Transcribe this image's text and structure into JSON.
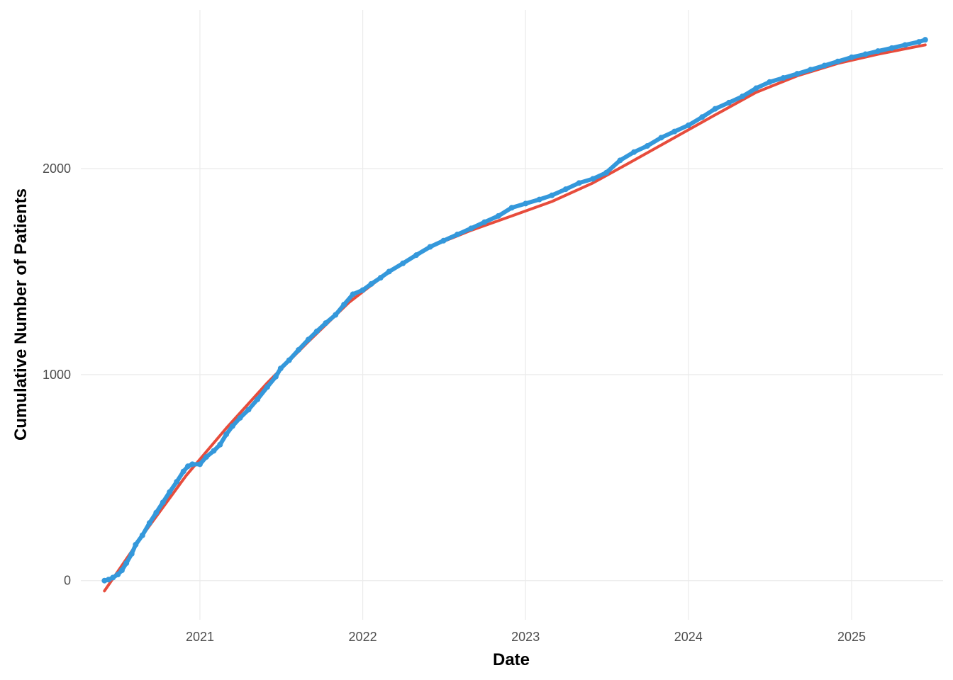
{
  "chart_data": {
    "type": "scatter",
    "title": "",
    "xlabel": "Date",
    "ylabel": "Cumulative Number of Patients",
    "x_type": "date",
    "xlim": [
      "2020-04-09",
      "2025-07-25"
    ],
    "ylim": [
      -190,
      2770
    ],
    "x_ticks": [
      {
        "value": "2021-01-01",
        "label": "2021"
      },
      {
        "value": "2022-01-01",
        "label": "2022"
      },
      {
        "value": "2023-01-01",
        "label": "2023"
      },
      {
        "value": "2024-01-01",
        "label": "2024"
      },
      {
        "value": "2025-01-01",
        "label": "2025"
      }
    ],
    "y_ticks": [
      {
        "value": 0,
        "label": "0"
      },
      {
        "value": 1000,
        "label": "1000"
      },
      {
        "value": 2000,
        "label": "2000"
      }
    ],
    "grid": true,
    "legend": "none",
    "series": [
      {
        "kind": "points",
        "color": "#3498db",
        "points": [
          [
            "2020-06-01",
            0
          ],
          [
            "2020-06-10",
            5
          ],
          [
            "2020-06-20",
            15
          ],
          [
            "2020-07-01",
            30
          ],
          [
            "2020-07-10",
            50
          ],
          [
            "2020-07-20",
            85
          ],
          [
            "2020-08-01",
            130
          ],
          [
            "2020-08-10",
            175
          ],
          [
            "2020-08-25",
            220
          ],
          [
            "2020-09-10",
            280
          ],
          [
            "2020-09-25",
            330
          ],
          [
            "2020-10-10",
            380
          ],
          [
            "2020-10-25",
            430
          ],
          [
            "2020-11-10",
            480
          ],
          [
            "2020-11-25",
            530
          ],
          [
            "2020-12-05",
            555
          ],
          [
            "2020-12-15",
            565
          ],
          [
            "2021-01-01",
            565
          ],
          [
            "2021-01-15",
            600
          ],
          [
            "2021-02-01",
            630
          ],
          [
            "2021-02-15",
            660
          ],
          [
            "2021-03-01",
            710
          ],
          [
            "2021-03-15",
            750
          ],
          [
            "2021-04-01",
            790
          ],
          [
            "2021-04-20",
            830
          ],
          [
            "2021-05-10",
            880
          ],
          [
            "2021-06-01",
            940
          ],
          [
            "2021-06-20",
            990
          ],
          [
            "2021-07-01",
            1030
          ],
          [
            "2021-07-20",
            1070
          ],
          [
            "2021-08-10",
            1120
          ],
          [
            "2021-09-01",
            1170
          ],
          [
            "2021-09-20",
            1210
          ],
          [
            "2021-10-10",
            1250
          ],
          [
            "2021-11-01",
            1290
          ],
          [
            "2021-11-20",
            1340
          ],
          [
            "2021-12-10",
            1390
          ],
          [
            "2022-01-01",
            1410
          ],
          [
            "2022-01-20",
            1440
          ],
          [
            "2022-02-10",
            1470
          ],
          [
            "2022-03-01",
            1500
          ],
          [
            "2022-04-01",
            1540
          ],
          [
            "2022-05-01",
            1580
          ],
          [
            "2022-06-01",
            1620
          ],
          [
            "2022-07-01",
            1650
          ],
          [
            "2022-08-01",
            1680
          ],
          [
            "2022-09-01",
            1710
          ],
          [
            "2022-10-01",
            1740
          ],
          [
            "2022-11-01",
            1770
          ],
          [
            "2022-12-01",
            1810
          ],
          [
            "2023-01-01",
            1830
          ],
          [
            "2023-02-01",
            1850
          ],
          [
            "2023-03-01",
            1870
          ],
          [
            "2023-04-01",
            1900
          ],
          [
            "2023-05-01",
            1930
          ],
          [
            "2023-06-01",
            1950
          ],
          [
            "2023-07-01",
            1980
          ],
          [
            "2023-08-01",
            2040
          ],
          [
            "2023-09-01",
            2080
          ],
          [
            "2023-10-01",
            2110
          ],
          [
            "2023-11-01",
            2150
          ],
          [
            "2023-12-01",
            2180
          ],
          [
            "2024-01-01",
            2210
          ],
          [
            "2024-02-01",
            2250
          ],
          [
            "2024-03-01",
            2290
          ],
          [
            "2024-04-01",
            2320
          ],
          [
            "2024-05-01",
            2350
          ],
          [
            "2024-06-01",
            2390
          ],
          [
            "2024-07-01",
            2420
          ],
          [
            "2024-08-01",
            2440
          ],
          [
            "2024-09-01",
            2460
          ],
          [
            "2024-10-01",
            2480
          ],
          [
            "2024-11-01",
            2500
          ],
          [
            "2024-12-01",
            2520
          ],
          [
            "2025-01-01",
            2540
          ],
          [
            "2025-02-01",
            2555
          ],
          [
            "2025-03-01",
            2570
          ],
          [
            "2025-04-01",
            2585
          ],
          [
            "2025-05-01",
            2600
          ],
          [
            "2025-06-01",
            2615
          ],
          [
            "2025-06-15",
            2625
          ]
        ]
      },
      {
        "kind": "fit-line",
        "color": "#e74c3c",
        "points": [
          [
            "2020-06-01",
            -50
          ],
          [
            "2020-09-01",
            240
          ],
          [
            "2020-12-01",
            510
          ],
          [
            "2021-03-01",
            740
          ],
          [
            "2021-06-01",
            960
          ],
          [
            "2021-09-01",
            1160
          ],
          [
            "2021-12-01",
            1350
          ],
          [
            "2022-03-01",
            1500
          ],
          [
            "2022-06-01",
            1620
          ],
          [
            "2022-09-01",
            1700
          ],
          [
            "2022-12-01",
            1770
          ],
          [
            "2023-03-01",
            1840
          ],
          [
            "2023-06-01",
            1930
          ],
          [
            "2023-09-01",
            2040
          ],
          [
            "2023-12-01",
            2150
          ],
          [
            "2024-03-01",
            2260
          ],
          [
            "2024-06-01",
            2370
          ],
          [
            "2024-09-01",
            2450
          ],
          [
            "2024-12-01",
            2510
          ],
          [
            "2025-03-01",
            2555
          ],
          [
            "2025-06-15",
            2600
          ]
        ]
      }
    ]
  }
}
